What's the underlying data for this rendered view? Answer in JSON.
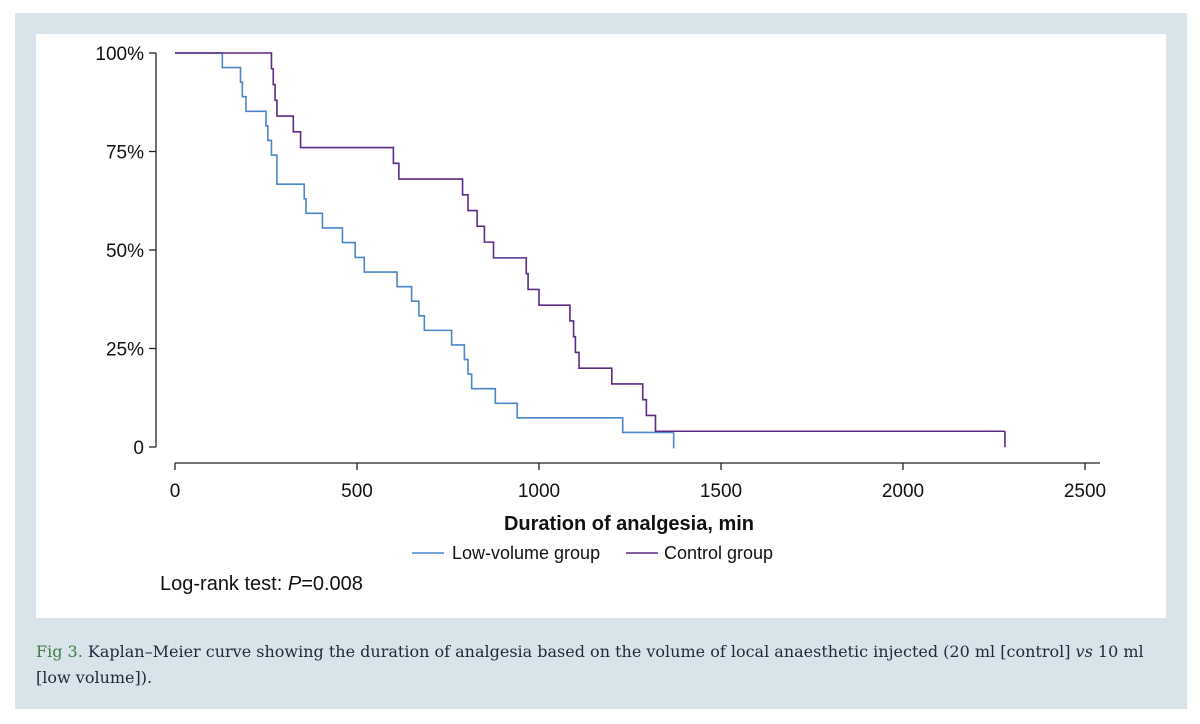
{
  "chart_data": {
    "type": "line",
    "subtype": "kaplan-meier-step",
    "title": "",
    "xlabel": "Duration of analgesia, min",
    "ylabel": "",
    "xlim": [
      0,
      2500
    ],
    "ylim": [
      0,
      1
    ],
    "x_ticks": [
      0,
      500,
      1000,
      1500,
      2000,
      2500
    ],
    "x_tick_labels": [
      "0",
      "500",
      "1000",
      "1500",
      "2000",
      "2500"
    ],
    "y_ticks": [
      0,
      0.25,
      0.5,
      0.75,
      1.0
    ],
    "y_tick_labels": [
      "0",
      "25%",
      "50%",
      "75%",
      "100%"
    ],
    "grid": false,
    "legend_position": "bottom",
    "annotation": {
      "prefix": "Log-rank test: ",
      "italic": "P",
      "suffix": "=0.008"
    },
    "series": [
      {
        "name": "Low-volume group",
        "color": "#4a86c8",
        "steps": [
          [
            0,
            1.0
          ],
          [
            130,
            0.963
          ],
          [
            180,
            0.926
          ],
          [
            185,
            0.889
          ],
          [
            195,
            0.852
          ],
          [
            250,
            0.815
          ],
          [
            255,
            0.778
          ],
          [
            265,
            0.741
          ],
          [
            280,
            0.667
          ],
          [
            355,
            0.63
          ],
          [
            360,
            0.593
          ],
          [
            405,
            0.556
          ],
          [
            460,
            0.519
          ],
          [
            495,
            0.481
          ],
          [
            520,
            0.444
          ],
          [
            610,
            0.407
          ],
          [
            650,
            0.37
          ],
          [
            670,
            0.333
          ],
          [
            685,
            0.296
          ],
          [
            760,
            0.259
          ],
          [
            795,
            0.222
          ],
          [
            805,
            0.185
          ],
          [
            815,
            0.148
          ],
          [
            880,
            0.111
          ],
          [
            940,
            0.074
          ],
          [
            1230,
            0.037
          ]
        ],
        "end_x": 1370
      },
      {
        "name": "Control group",
        "color": "#5b2a86",
        "steps": [
          [
            0,
            1.0
          ],
          [
            265,
            0.96
          ],
          [
            270,
            0.92
          ],
          [
            275,
            0.88
          ],
          [
            280,
            0.84
          ],
          [
            325,
            0.8
          ],
          [
            345,
            0.76
          ],
          [
            600,
            0.72
          ],
          [
            615,
            0.68
          ],
          [
            790,
            0.64
          ],
          [
            805,
            0.6
          ],
          [
            830,
            0.56
          ],
          [
            850,
            0.52
          ],
          [
            875,
            0.48
          ],
          [
            965,
            0.44
          ],
          [
            970,
            0.4
          ],
          [
            1000,
            0.36
          ],
          [
            1085,
            0.32
          ],
          [
            1095,
            0.28
          ],
          [
            1100,
            0.24
          ],
          [
            1110,
            0.2
          ],
          [
            1200,
            0.16
          ],
          [
            1285,
            0.12
          ],
          [
            1295,
            0.08
          ],
          [
            1320,
            0.04
          ]
        ],
        "end_x": 2280
      }
    ]
  },
  "caption": {
    "label": "Fig 3.",
    "text_1": " Kaplan–Meier curve showing the duration of analgesia based on the volume of local anaesthetic injected (20 ml [control] ",
    "italic": "vs",
    "text_2": " 10 ml [low volume])."
  }
}
